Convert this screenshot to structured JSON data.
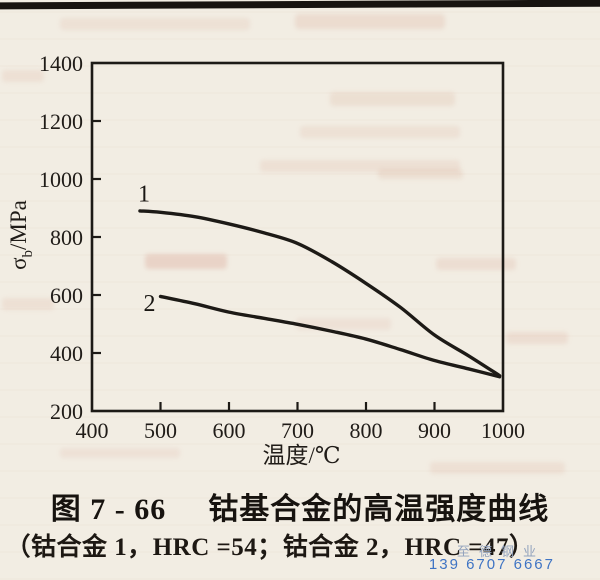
{
  "page": {
    "background": "#f2ede3",
    "ink": "#1d1a16"
  },
  "caption": {
    "figure_number": "图 7 - 66",
    "title": "钴基合金的高温强度曲线",
    "subtitle": "（钴合金 1，HRC =54；钴合金 2，HRC =47）"
  },
  "watermark": {
    "name": "至德钢业",
    "phone": "139 6707 6667",
    "name_color": "#92a2bd",
    "phone_color": "#3f74c4"
  },
  "chart_data": {
    "type": "line",
    "title": "钴基合金的高温强度曲线",
    "xlabel": "温度/℃",
    "ylabel": "σb/MPa",
    "ylabel_parts": {
      "base": "σ",
      "sub": "b",
      "unit": "/MPa"
    },
    "xlim": [
      400,
      1000
    ],
    "ylim": [
      200,
      1400
    ],
    "x_ticks": [
      400,
      500,
      600,
      700,
      800,
      900,
      1000
    ],
    "y_ticks": [
      200,
      400,
      600,
      800,
      1000,
      1200,
      1400
    ],
    "grid": false,
    "legend_position": "none",
    "series": [
      {
        "name": "1",
        "label_at": [
          476,
          950
        ],
        "x": [
          470,
          500,
          550,
          600,
          650,
          700,
          750,
          800,
          850,
          900,
          950,
          995
        ],
        "y": [
          890,
          885,
          870,
          845,
          815,
          778,
          715,
          640,
          558,
          462,
          390,
          322
        ]
      },
      {
        "name": "2",
        "label_at": [
          484,
          572
        ],
        "x": [
          500,
          550,
          600,
          650,
          700,
          750,
          800,
          850,
          900,
          950,
          995
        ],
        "y": [
          595,
          570,
          541,
          520,
          499,
          475,
          448,
          412,
          374,
          345,
          318
        ]
      }
    ]
  }
}
